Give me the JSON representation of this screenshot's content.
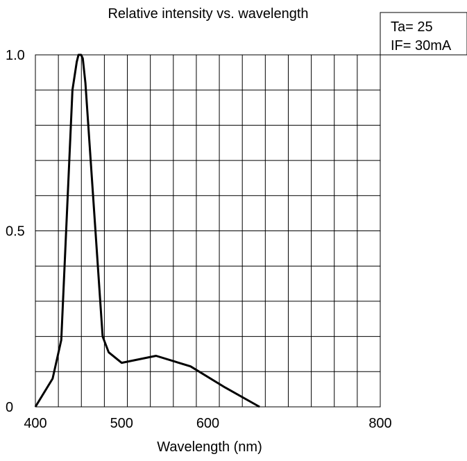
{
  "chart_data": {
    "type": "line",
    "title": "Relative intensity vs. wavelength",
    "xlabel": "Wavelength (nm)",
    "ylabel": "",
    "xlim": [
      400,
      800
    ],
    "ylim": [
      0,
      1.0
    ],
    "x_ticks": [
      400,
      500,
      600,
      800
    ],
    "x_tick_labels": [
      "400",
      "500",
      "600",
      "800"
    ],
    "y_ticks": [
      0,
      0.5,
      1.0
    ],
    "y_tick_labels": [
      "0",
      "0.5",
      "1.0"
    ],
    "grid": true,
    "legend": "none",
    "conditions": [
      "Ta= 25",
      "IF= 30mA"
    ],
    "series": [
      {
        "x": [
          400,
          420,
          430,
          443,
          448,
          450,
          453,
          455,
          458,
          478,
          485,
          500,
          540,
          580,
          620,
          660
        ],
        "y": [
          0.0,
          0.08,
          0.19,
          0.9,
          0.98,
          1.0,
          1.0,
          0.99,
          0.92,
          0.2,
          0.155,
          0.125,
          0.145,
          0.115,
          0.055,
          0.0
        ]
      }
    ]
  }
}
